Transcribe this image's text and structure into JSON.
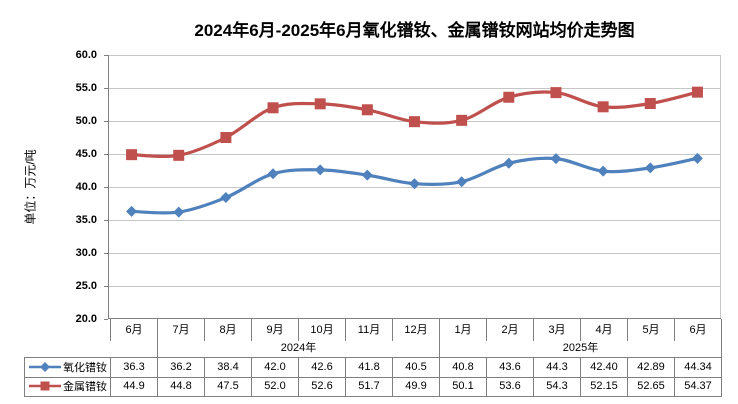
{
  "chart_data": {
    "type": "line",
    "title": "2024年6月-2025年6月氧化镨钕、金属镨钕网站均价走势图",
    "ylabel": "单位：万元/吨",
    "xlabel": "",
    "ylim": [
      20.0,
      60.0
    ],
    "ytick_step": 5.0,
    "yticks": [
      "60.0",
      "55.0",
      "50.0",
      "45.0",
      "40.0",
      "35.0",
      "30.0",
      "25.0",
      "20.0"
    ],
    "grid": true,
    "smoothed_lines": true,
    "legend_position": "table-left",
    "categories": [
      "6月",
      "7月",
      "8月",
      "9月",
      "10月",
      "11月",
      "12月",
      "1月",
      "2月",
      "3月",
      "4月",
      "5月",
      "6月"
    ],
    "year_groups": [
      {
        "label": "",
        "span": 1
      },
      {
        "label": "2024年",
        "span": 6
      },
      {
        "label": "2025年",
        "span": 6
      }
    ],
    "series": [
      {
        "name": "氧化镨钕",
        "color": "#4F81BD",
        "marker": "diamond",
        "values": [
          36.3,
          36.2,
          38.4,
          42.0,
          42.6,
          41.8,
          40.5,
          40.8,
          43.6,
          44.3,
          42.4,
          42.89,
          44.34
        ],
        "display": [
          "36.3",
          "36.2",
          "38.4",
          "42.0",
          "42.6",
          "41.8",
          "40.5",
          "40.8",
          "43.6",
          "44.3",
          "42.40",
          "42.89",
          "44.34"
        ]
      },
      {
        "name": "金属镨钕",
        "color": "#C0504D",
        "marker": "square",
        "values": [
          44.9,
          44.8,
          47.5,
          52.0,
          52.6,
          51.7,
          49.9,
          50.1,
          53.6,
          54.3,
          52.15,
          52.65,
          54.37
        ],
        "display": [
          "44.9",
          "44.8",
          "47.5",
          "52.0",
          "52.6",
          "51.7",
          "49.9",
          "50.1",
          "53.6",
          "54.3",
          "52.15",
          "52.65",
          "54.37"
        ]
      }
    ],
    "axis_color": "#808080",
    "gridline_color": "#C6C6C6",
    "background_color": "#FFFFFF"
  }
}
